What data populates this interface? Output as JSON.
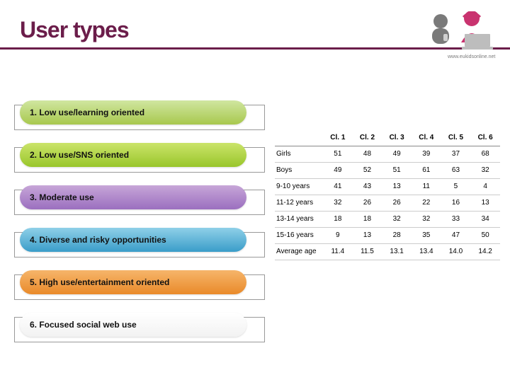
{
  "title": {
    "text": "User types",
    "color": "#6b1d4a"
  },
  "rule_color": "#6b1d4a",
  "logo": {
    "url_text": "www.eukidsonline.net",
    "figure_left_color": "#7a7a7a",
    "figure_right_color": "#c9336f",
    "laptop_color": "#bdbdbd"
  },
  "pills": [
    {
      "label": "1. Low use/learning oriented",
      "grad_from": "#d0e6a0",
      "grad_to": "#a8c84e"
    },
    {
      "label": "2. Low use/SNS oriented",
      "grad_from": "#cbe46a",
      "grad_to": "#99c62b"
    },
    {
      "label": "3. Moderate use",
      "grad_from": "#c7a6d8",
      "grad_to": "#9b6fbf"
    },
    {
      "label": "4. Diverse and risky opportunities",
      "grad_from": "#8fd0e8",
      "grad_to": "#3a9dc9"
    },
    {
      "label": "5. High use/entertainment oriented",
      "grad_from": "#f6b56a",
      "grad_to": "#e98a2a"
    },
    {
      "label": "6. Focused social web use",
      "grad_from": "#ffffff",
      "grad_to": "#f2f2f2"
    }
  ],
  "table": {
    "columns": [
      "",
      "Cl. 1",
      "Cl. 2",
      "Cl. 3",
      "Cl. 4",
      "Cl. 5",
      "Cl. 6"
    ],
    "rows": [
      [
        "Girls",
        "51",
        "48",
        "49",
        "39",
        "37",
        "68"
      ],
      [
        "Boys",
        "49",
        "52",
        "51",
        "61",
        "63",
        "32"
      ],
      [
        "9-10 years",
        "41",
        "43",
        "13",
        "11",
        "5",
        "4"
      ],
      [
        "11-12 years",
        "32",
        "26",
        "26",
        "22",
        "16",
        "13"
      ],
      [
        "13-14 years",
        "18",
        "18",
        "32",
        "32",
        "33",
        "34"
      ],
      [
        "15-16 years",
        "9",
        "13",
        "28",
        "35",
        "47",
        "50"
      ],
      [
        "Average age",
        "11.4",
        "11.5",
        "13.1",
        "13.4",
        "14.0",
        "14.2"
      ]
    ],
    "header_fontsize": 10,
    "cell_fontsize": 10,
    "border_color": "#cccccc"
  }
}
